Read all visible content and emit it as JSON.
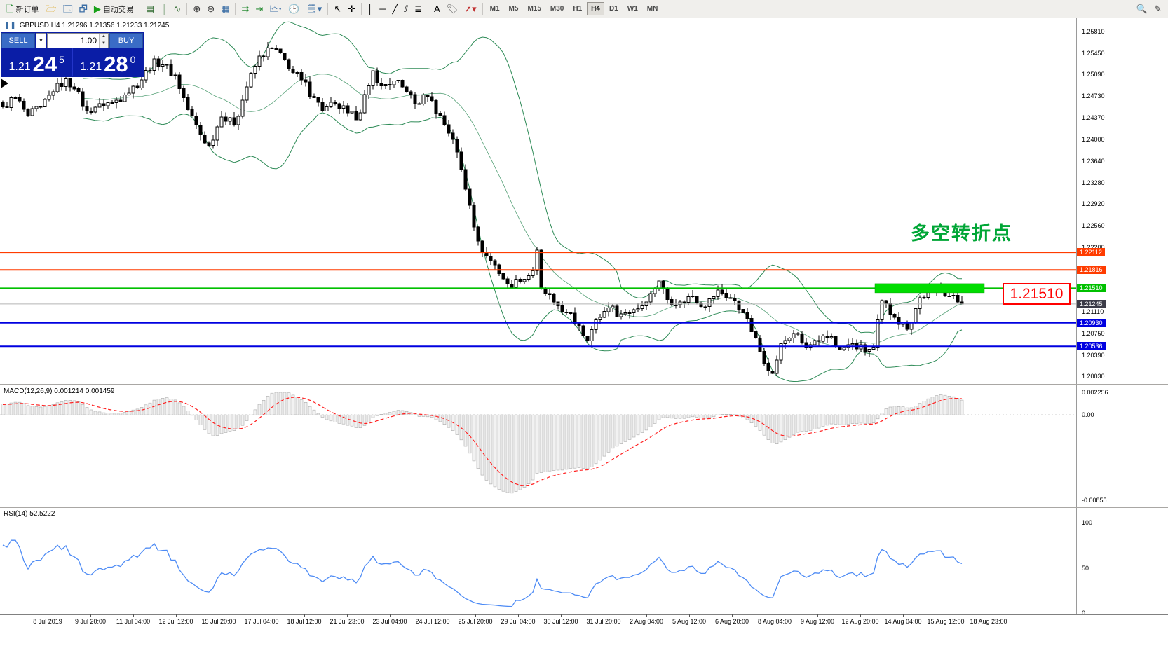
{
  "toolbar": {
    "items": [
      {
        "name": "new-order",
        "glyph": "🗋",
        "color": "#2e8f3a",
        "label": "新订单"
      },
      {
        "name": "market-watch",
        "glyph": "🗁",
        "color": "#d79b00"
      },
      {
        "name": "data-window",
        "glyph": "🗔",
        "color": "#3b6ea5"
      },
      {
        "name": "navigator",
        "glyph": "🗗",
        "color": "#3b6ea5"
      },
      {
        "name": "auto-trading",
        "glyph": "▶",
        "color": "#18a018",
        "label": "自动交易"
      },
      {
        "type": "separator"
      },
      {
        "name": "bar-chart",
        "glyph": "▤",
        "color": "#2f6a2f"
      },
      {
        "name": "candlestick-chart",
        "glyph": "║",
        "color": "#2f6a2f"
      },
      {
        "name": "line-chart",
        "glyph": "∿",
        "color": "#2f6a2f"
      },
      {
        "type": "separator"
      },
      {
        "name": "zoom-in",
        "glyph": "⊕",
        "color": "#333"
      },
      {
        "name": "zoom-out",
        "glyph": "⊖",
        "color": "#333"
      },
      {
        "name": "tile-windows",
        "glyph": "▦",
        "color": "#3b6ea5"
      },
      {
        "type": "separator"
      },
      {
        "name": "auto-scroll",
        "glyph": "⇉",
        "color": "#2e8f3a"
      },
      {
        "name": "chart-shift",
        "glyph": "⇥",
        "color": "#2e8f3a"
      },
      {
        "name": "new-chart",
        "glyph": "🗠▾",
        "color": "#3b6ea5"
      },
      {
        "name": "period-clock",
        "glyph": "🕒",
        "color": "#3b6ea5"
      },
      {
        "name": "templates",
        "glyph": "🗒▾",
        "color": "#3b6ea5"
      },
      {
        "type": "separator"
      },
      {
        "name": "cursor",
        "glyph": "↖",
        "color": "#000"
      },
      {
        "name": "crosshair",
        "glyph": "✛",
        "color": "#000"
      },
      {
        "type": "separator"
      },
      {
        "name": "vertical-line",
        "glyph": "│",
        "color": "#000"
      },
      {
        "name": "horizontal-line",
        "glyph": "─",
        "color": "#000"
      },
      {
        "name": "trendline",
        "glyph": "╱",
        "color": "#000"
      },
      {
        "name": "equidistant-channel",
        "glyph": "⫽",
        "color": "#000"
      },
      {
        "name": "fibonacci",
        "glyph": "≣",
        "color": "#000"
      },
      {
        "type": "separator"
      },
      {
        "name": "text",
        "glyph": "A",
        "color": "#000"
      },
      {
        "name": "text-label",
        "glyph": "🏷",
        "color": "#555"
      },
      {
        "name": "arrow-tools",
        "glyph": "➚▾",
        "color": "#c03030"
      },
      {
        "type": "separator"
      },
      {
        "type": "timeframes"
      },
      {
        "type": "spacer"
      },
      {
        "name": "search",
        "glyph": "🔍",
        "color": "#333"
      },
      {
        "name": "edit",
        "glyph": "✎",
        "color": "#333"
      }
    ],
    "timeframes": [
      "M1",
      "M5",
      "M15",
      "M30",
      "H1",
      "H4",
      "D1",
      "W1",
      "MN"
    ],
    "active_timeframe": "H4"
  },
  "order_panel": {
    "sell_label": "SELL",
    "buy_label": "BUY",
    "volume": "1.00",
    "sell_price_main": "1.21",
    "sell_price_big": "24",
    "sell_price_sup": "5",
    "buy_price_main": "1.21",
    "buy_price_big": "28",
    "buy_price_sup": "0"
  },
  "chart_data": {
    "type": "candlestick",
    "symbol": "GBPUSD",
    "timeframe": "H4",
    "header_text": "GBPUSD,H4  1.21296 1.21356 1.21233 1.21245",
    "ohlc": {
      "open": "1.21296",
      "high": "1.21356",
      "low": "1.21233",
      "close": "1.21245"
    },
    "annotation": "多空转折点",
    "highlight_label": "1.21510",
    "price_axis_labels": [
      "1.25810",
      "1.25450",
      "1.25090",
      "1.24730",
      "1.24370",
      "1.24000",
      "1.23640",
      "1.23280",
      "1.22920",
      "1.22560",
      "1.22200",
      "1.21110",
      "1.20750",
      "1.20390",
      "1.20030"
    ],
    "price_range": {
      "max": 1.25915,
      "min": 1.19965
    },
    "levels": [
      {
        "value": "1.22112",
        "price": 1.22112,
        "color": "#ff3c00",
        "role": "resistance"
      },
      {
        "value": "1.21816",
        "price": 1.21816,
        "color": "#ff3c00",
        "role": "resistance"
      },
      {
        "value": "1.21510",
        "price": 1.2151,
        "color": "#00c000",
        "role": "pivot"
      },
      {
        "value": "1.21245",
        "price": 1.21245,
        "color": "#3c3c48",
        "role": "current-price"
      },
      {
        "value": "1.20930",
        "price": 1.2093,
        "color": "#0000e0",
        "role": "support"
      },
      {
        "value": "1.20536",
        "price": 1.20536,
        "color": "#0000e0",
        "role": "support"
      }
    ],
    "highlight_zone": {
      "price": 1.2151,
      "from_index": 208,
      "to_index": 233,
      "color": "#00dd00"
    },
    "bollinger": {
      "period": 20,
      "deviation": 2,
      "color": "#2e8b57"
    },
    "candle_count": 229,
    "close_anchors": [
      [
        0,
        1.2455
      ],
      [
        3,
        1.247
      ],
      [
        6,
        1.244
      ],
      [
        9,
        1.2455
      ],
      [
        12,
        1.248
      ],
      [
        15,
        1.2502
      ],
      [
        17,
        1.2485
      ],
      [
        20,
        1.2448
      ],
      [
        23,
        1.246
      ],
      [
        26,
        1.2462
      ],
      [
        29,
        1.2475
      ],
      [
        33,
        1.25
      ],
      [
        36,
        1.2535
      ],
      [
        38,
        1.2525
      ],
      [
        41,
        1.2508
      ],
      [
        44,
        1.245
      ],
      [
        47,
        1.2408
      ],
      [
        49,
        1.239
      ],
      [
        52,
        1.2438
      ],
      [
        55,
        1.2425
      ],
      [
        58,
        1.2488
      ],
      [
        61,
        1.254
      ],
      [
        64,
        1.2552
      ],
      [
        66,
        1.2545
      ],
      [
        68,
        1.2518
      ],
      [
        71,
        1.25
      ],
      [
        74,
        1.247
      ],
      [
        76,
        1.2448
      ],
      [
        79,
        1.246
      ],
      [
        82,
        1.2445
      ],
      [
        84,
        1.2433
      ],
      [
        87,
        1.249
      ],
      [
        88,
        1.2515
      ],
      [
        90,
        1.249
      ],
      [
        93,
        1.2498
      ],
      [
        96,
        1.248
      ],
      [
        98,
        1.246
      ],
      [
        101,
        1.2472
      ],
      [
        104,
        1.244
      ],
      [
        107,
        1.24
      ],
      [
        109,
        1.235
      ],
      [
        111,
        1.229
      ],
      [
        113,
        1.223
      ],
      [
        115,
        1.2205
      ],
      [
        117,
        1.219
      ],
      [
        120,
        1.2158
      ],
      [
        123,
        1.2162
      ],
      [
        126,
        1.218
      ],
      [
        127,
        1.2215
      ],
      [
        128,
        1.215
      ],
      [
        131,
        1.2128
      ],
      [
        134,
        1.211
      ],
      [
        137,
        1.2088
      ],
      [
        139,
        1.2063
      ],
      [
        141,
        1.2098
      ],
      [
        144,
        1.2118
      ],
      [
        147,
        1.2108
      ],
      [
        150,
        1.2115
      ],
      [
        153,
        1.2128
      ],
      [
        155,
        1.215
      ],
      [
        156,
        1.2163
      ],
      [
        158,
        1.2132
      ],
      [
        161,
        1.2128
      ],
      [
        164,
        1.2138
      ],
      [
        167,
        1.212
      ],
      [
        170,
        1.2148
      ],
      [
        173,
        1.2134
      ],
      [
        176,
        1.211
      ],
      [
        178,
        1.2078
      ],
      [
        180,
        1.2045
      ],
      [
        183,
        1.2008
      ],
      [
        185,
        1.2058
      ],
      [
        188,
        1.2075
      ],
      [
        191,
        1.2052
      ],
      [
        194,
        1.2062
      ],
      [
        197,
        1.207
      ],
      [
        199,
        1.2048
      ],
      [
        202,
        1.2058
      ],
      [
        205,
        1.2045
      ],
      [
        207,
        1.2052
      ],
      [
        209,
        1.213
      ],
      [
        212,
        1.2102
      ],
      [
        215,
        1.2082
      ],
      [
        218,
        1.2135
      ],
      [
        221,
        1.2148
      ],
      [
        223,
        1.2152
      ],
      [
        225,
        1.2138
      ],
      [
        227,
        1.2128
      ],
      [
        228,
        1.21245
      ]
    ],
    "time_axis": [
      "8 Jul 2019",
      "9 Jul 20:00",
      "11 Jul 04:00",
      "12 Jul 12:00",
      "15 Jul 20:00",
      "17 Jul 04:00",
      "18 Jul 12:00",
      "21 Jul 23:00",
      "23 Jul 04:00",
      "24 Jul 12:00",
      "25 Jul 20:00",
      "29 Jul 04:00",
      "30 Jul 12:00",
      "31 Jul 20:00",
      "2 Aug 04:00",
      "5 Aug 12:00",
      "6 Aug 20:00",
      "8 Aug 04:00",
      "9 Aug 12:00",
      "12 Aug 20:00",
      "14 Aug 04:00",
      "15 Aug 12:00",
      "18 Aug 23:00"
    ],
    "indicators": {
      "macd": {
        "label": "MACD(12,26,9)",
        "values_text": "0.001214 0.001459",
        "axis_labels": [
          "0.002256",
          "0.00",
          "-0.00855"
        ],
        "axis_max": 0.002256,
        "axis_min": -0.00855,
        "signal_color": "#ff2020"
      },
      "rsi": {
        "label": "RSI(14)",
        "value": "52.5222",
        "axis_labels": [
          "100",
          "50",
          "0"
        ],
        "line_color": "#4d8bf5"
      }
    }
  }
}
